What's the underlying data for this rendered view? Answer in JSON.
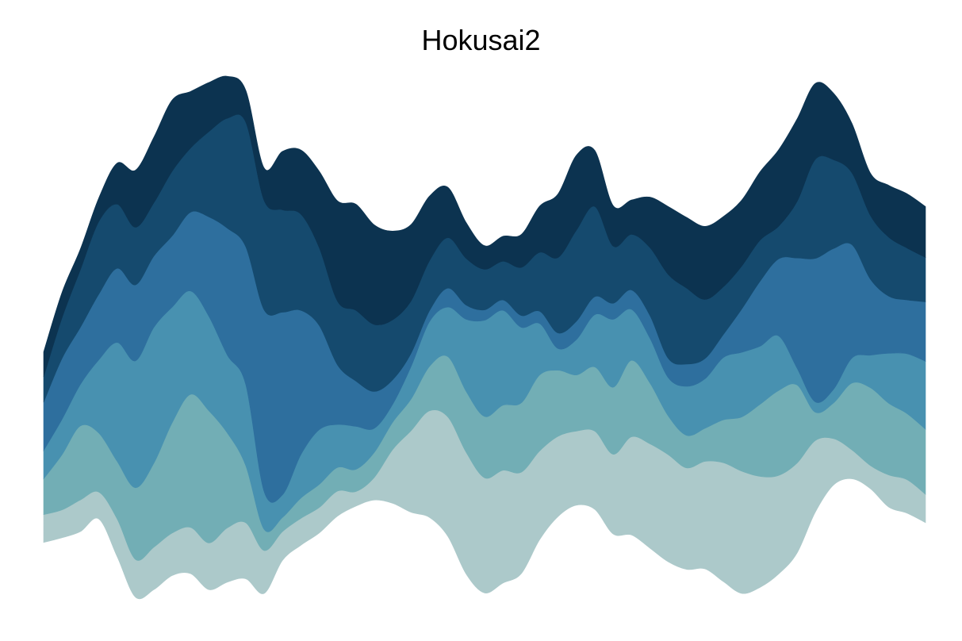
{
  "chart_data": {
    "type": "area",
    "style": "streamgraph",
    "title": "Hokusai2",
    "xlabel": "",
    "ylabel": "",
    "axes_visible": false,
    "grid": false,
    "legend": "none",
    "colors": [
      "#acc9ca",
      "#72aeb5",
      "#4891b0",
      "#2e6f9e",
      "#154a6e",
      "#0c3350"
    ],
    "x": [
      0,
      1,
      2,
      3,
      4,
      5,
      6,
      7,
      8,
      9,
      10,
      11,
      12,
      13,
      14,
      15,
      16,
      17,
      18,
      19,
      20,
      21,
      22,
      23,
      24,
      25,
      26,
      27,
      28,
      29,
      30,
      31,
      32,
      33,
      34,
      35,
      36,
      37,
      38,
      39,
      40,
      41,
      42,
      43,
      44,
      45,
      46,
      47,
      48
    ],
    "baseline": [
      -2.41,
      -2.31,
      -2.18,
      -1.91,
      -2.71,
      -3.57,
      -3.41,
      -3.11,
      -3.07,
      -3.41,
      -3.25,
      -3.18,
      -3.49,
      -2.79,
      -2.47,
      -2.21,
      -1.85,
      -1.64,
      -1.51,
      -1.58,
      -1.77,
      -1.88,
      -2.28,
      -3.08,
      -3.48,
      -3.27,
      -3.07,
      -2.35,
      -1.86,
      -1.62,
      -1.71,
      -2.23,
      -2.25,
      -2.53,
      -2.82,
      -2.98,
      -2.97,
      -3.24,
      -3.49,
      -3.36,
      -3.08,
      -2.64,
      -1.77,
      -1.19,
      -1.06,
      -1.27,
      -1.66,
      -1.79,
      -1.99
    ],
    "series": [
      {
        "values": [
          0.59,
          0.59,
          0.67,
          0.57,
          0.8,
          0.8,
          0.9,
          0.9,
          0.98,
          0.99,
          1.15,
          1.19,
          0.91,
          0.61,
          0.57,
          0.54,
          0.53,
          0.31,
          0.48,
          1.14,
          1.73,
          2.26,
          2.53,
          2.58,
          2.44,
          2.39,
          2.15,
          1.88,
          1.7,
          1.57,
          1.66,
          1.69,
          2.08,
          2.21,
          2.27,
          2.15,
          2.28,
          2.52,
          2.59,
          2.35,
          2.09,
          1.91,
          1.52,
          0.98,
          0.61,
          0.49,
          0.68,
          0.71,
          0.6
        ]
      },
      {
        "values": [
          0.76,
          1.17,
          1.57,
          1.25,
          1.22,
          1.52,
          1.78,
          2.34,
          2.82,
          2.8,
          2.01,
          1.21,
          0.45,
          0.3,
          0.43,
          0.49,
          0.5,
          0.47,
          0.53,
          0.58,
          0.67,
          0.94,
          1.28,
          1.29,
          1.3,
          1.38,
          1.47,
          1.61,
          1.4,
          1.19,
          1.36,
          1.42,
          1.62,
          1.29,
          0.82,
          0.69,
          0.7,
          0.91,
          1.15,
          1.53,
          1.8,
          1.66,
          0.6,
          0.76,
          1.42,
          1.65,
          1.52,
          1.4,
          1.38
        ]
      },
      {
        "values": [
          0.6,
          0.75,
          0.88,
          1.55,
          2.52,
          2.69,
          2.88,
          2.45,
          2.19,
          2.0,
          1.65,
          1.72,
          0.8,
          0.48,
          0.92,
          1.16,
          0.91,
          0.91,
          0.51,
          0.38,
          0.69,
          0.95,
          1.05,
          1.53,
          2.04,
          2.01,
          1.6,
          1.09,
          0.46,
          0.75,
          1.11,
          1.44,
          1.08,
          0.95,
          0.81,
          1.04,
          1.05,
          1.32,
          1.37,
          1.23,
          1.16,
          0.36,
          0.22,
          0.29,
          0.53,
          0.69,
          1.06,
          1.27,
          1.44
        ]
      },
      {
        "values": [
          1.02,
          1.29,
          1.21,
          1.39,
          1.57,
          1.61,
          1.51,
          1.51,
          1.67,
          2.11,
          2.69,
          2.92,
          3.85,
          3.87,
          3.06,
          2.21,
          1.26,
          0.96,
          0.78,
          0.52,
          0.28,
          0.23,
          0.4,
          0.3,
          0.22,
          0.22,
          0.25,
          0.26,
          0.33,
          0.39,
          0.38,
          0.34,
          0.41,
          0.48,
          0.41,
          0.47,
          0.43,
          0.49,
          0.92,
          1.38,
          1.63,
          2.33,
          3.04,
          2.98,
          2.4,
          1.61,
          1.21,
          1.14,
          1.26
        ]
      },
      {
        "values": [
          0.54,
          0.86,
          1.22,
          1.54,
          1.36,
          1.22,
          1.13,
          1.37,
          1.36,
          1.81,
          2.33,
          2.64,
          2.32,
          2.17,
          2.04,
          1.65,
          1.35,
          1.5,
          1.42,
          1.27,
          1.11,
          1.06,
          1.07,
          0.99,
          0.86,
          0.82,
          1.02,
          1.25,
          1.6,
          1.93,
          1.91,
          1.21,
          1.18,
          1.44,
          1.78,
          1.61,
          1.25,
          1.01,
          0.91,
          0.87,
          0.69,
          1.19,
          2.1,
          1.88,
          1.52,
          1.35,
          1.25,
          1.1,
          0.94
        ]
      },
      {
        "values": [
          0.53,
          0.54,
          0.44,
          0.5,
          0.87,
          1.21,
          1.39,
          1.51,
          1.2,
          1.04,
          0.89,
          0.68,
          0.69,
          1.24,
          1.36,
          1.62,
          2.13,
          2.25,
          2.11,
          1.88,
          1.62,
          1.37,
          1.07,
          0.76,
          0.5,
          0.53,
          0.7,
          0.98,
          1.35,
          1.59,
          1.19,
          0.86,
          0.73,
          1.07,
          1.44,
          1.5,
          1.55,
          1.49,
          1.4,
          1.45,
          1.62,
          1.75,
          1.61,
          1.41,
          1.05,
          0.9,
          1.1,
          1.15,
          1.08
        ]
      }
    ],
    "ylim": [
      -3.59,
      7.49
    ]
  }
}
